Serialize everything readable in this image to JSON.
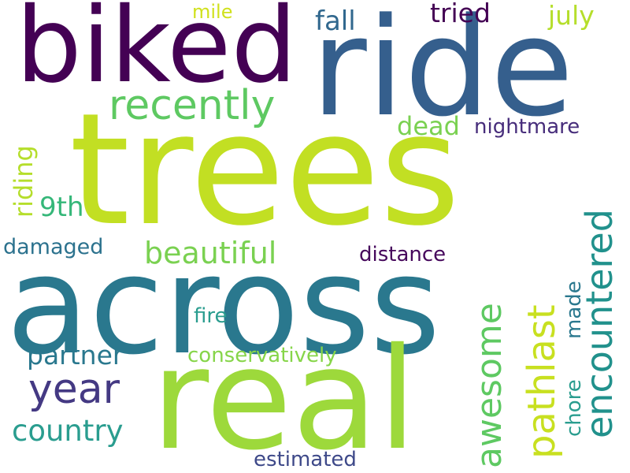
{
  "words": {
    "trees": {
      "text": "trees",
      "color": "#c2df23"
    },
    "across": {
      "text": "across",
      "color": "#2a788e"
    },
    "real": {
      "text": "real",
      "color": "#9dd93b"
    },
    "ride": {
      "text": "ride",
      "color": "#355f8d"
    },
    "biked": {
      "text": "biked",
      "color": "#440154"
    },
    "recently": {
      "text": "recently",
      "color": "#5ec962"
    },
    "year": {
      "text": "year",
      "color": "#443983"
    },
    "encountered": {
      "text": "encountered",
      "color": "#21918c"
    },
    "awesome": {
      "text": "awesome",
      "color": "#5ec962"
    },
    "pathlast": {
      "text": "pathlast",
      "color": "#c8e020"
    },
    "beautiful": {
      "text": "beautiful",
      "color": "#7ad151"
    },
    "country": {
      "text": "country",
      "color": "#2a9d8f"
    },
    "partner": {
      "text": "partner",
      "color": "#2a788e"
    },
    "fall": {
      "text": "fall",
      "color": "#31688e"
    },
    "tried": {
      "text": "tried",
      "color": "#440154"
    },
    "july": {
      "text": "july",
      "color": "#b5de2b"
    },
    "mile": {
      "text": "mile",
      "color": "#d0e11c"
    },
    "dead": {
      "text": "dead",
      "color": "#7ad151"
    },
    "nightmare": {
      "text": "nightmare",
      "color": "#472d7b"
    },
    "riding": {
      "text": "riding",
      "color": "#b5de2b"
    },
    "ninth": {
      "text": "9th",
      "color": "#35b779"
    },
    "damaged": {
      "text": "damaged",
      "color": "#2c728e"
    },
    "distance": {
      "text": "distance",
      "color": "#46085c"
    },
    "chore": {
      "text": "chore",
      "color": "#2a9d8f"
    },
    "made": {
      "text": "made",
      "color": "#2a788e"
    },
    "fire": {
      "text": "fire",
      "color": "#2a9d8f"
    },
    "conservatively": {
      "text": "conservatively",
      "color": "#86d549"
    },
    "estimated": {
      "text": "estimated",
      "color": "#3e4989"
    }
  }
}
